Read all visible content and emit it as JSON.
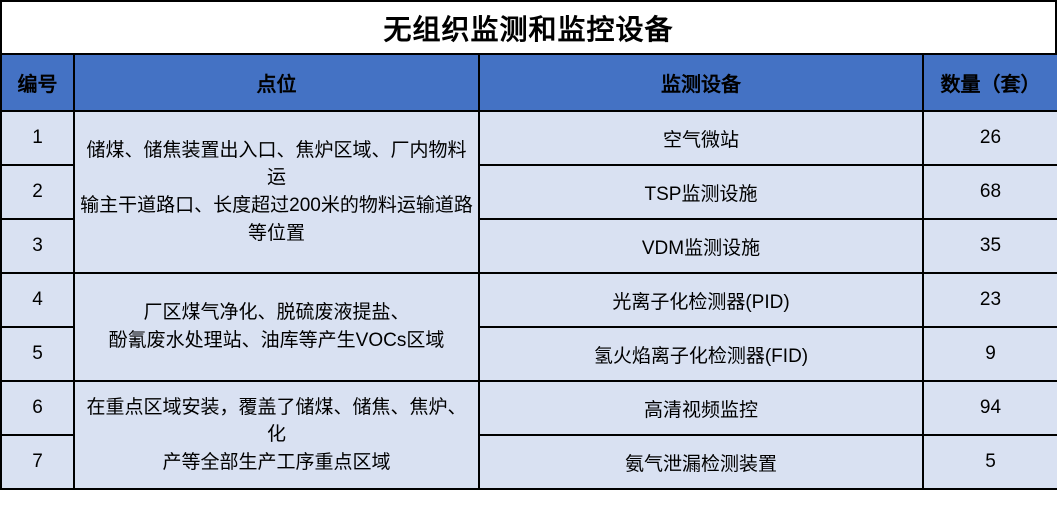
{
  "title": "无组织监测和监控设备",
  "colors": {
    "header_bg": "#4472C4",
    "body_bg": "#D9E1F2",
    "border": "#000000",
    "title_bg": "#FFFFFF",
    "text": "#000000"
  },
  "table": {
    "headers": [
      "编号",
      "点位",
      "监测设备",
      "数量（套）"
    ],
    "groups": [
      {
        "location": "储煤、储焦装置出入口、焦炉区域、厂内物料运\n输主干道路口、长度超过200米的物料运输道路\n等位置",
        "rows": [
          {
            "no": "1",
            "device": "空气微站",
            "qty": "26"
          },
          {
            "no": "2",
            "device": "TSP监测设施",
            "qty": "68"
          },
          {
            "no": "3",
            "device": "VDM监测设施",
            "qty": "35"
          }
        ]
      },
      {
        "location": "厂区煤气净化、脱硫废液提盐、\n酚氰废水处理站、油库等产生VOCs区域",
        "rows": [
          {
            "no": "4",
            "device": "光离子化检测器(PID)",
            "qty": "23"
          },
          {
            "no": "5",
            "device": "氢火焰离子化检测器(FID)",
            "qty": "9"
          }
        ]
      },
      {
        "location": "在重点区域安装，覆盖了储煤、储焦、焦炉、化\n产等全部生产工序重点区域",
        "rows": [
          {
            "no": "6",
            "device": "高清视频监控",
            "qty": "94"
          },
          {
            "no": "7",
            "device": "氨气泄漏检测装置",
            "qty": "5"
          }
        ]
      }
    ]
  }
}
